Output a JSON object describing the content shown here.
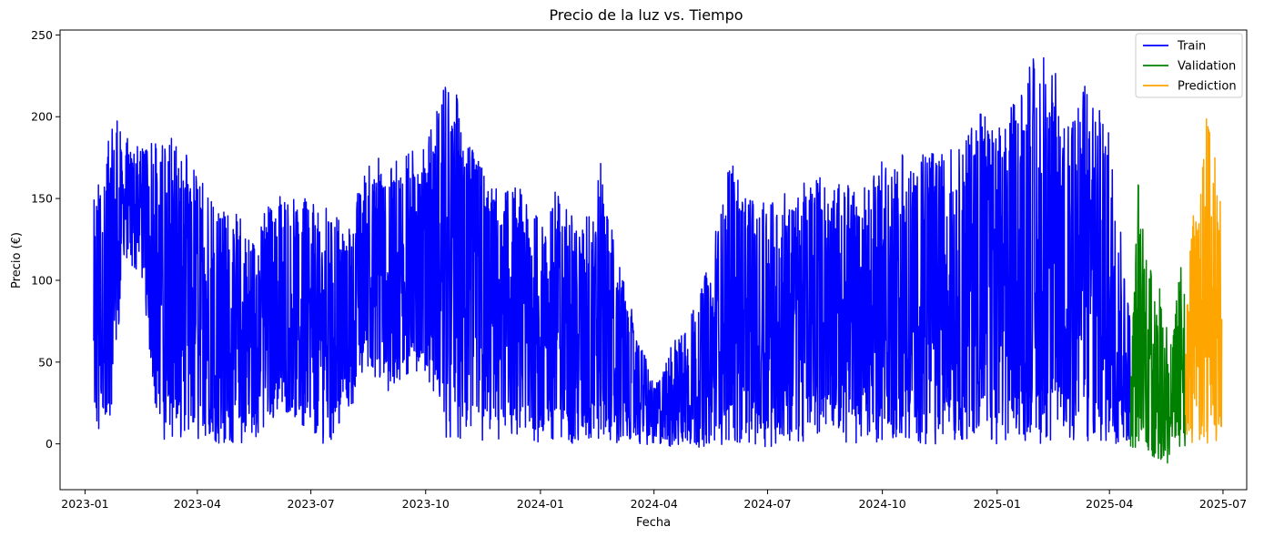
{
  "chart_data": {
    "type": "line",
    "title": "Precio de la luz vs. Tiempo",
    "xlabel": "Fecha",
    "ylabel": "Precio (€)",
    "x_ticks": [
      "2023-01",
      "2023-04",
      "2023-07",
      "2023-10",
      "2024-01",
      "2024-04",
      "2024-07",
      "2024-10",
      "2025-01",
      "2025-04",
      "2025-07"
    ],
    "y_ticks": [
      0,
      50,
      100,
      150,
      200,
      250
    ],
    "xlim": [
      "2022-12-12",
      "2025-07-20"
    ],
    "ylim": [
      -28,
      253
    ],
    "grid": false,
    "legend": "top-right",
    "series": [
      {
        "name": "Train",
        "color": "#0000ff",
        "start": "2023-01-08",
        "end": "2025-04-18",
        "envelope": [
          [
            "2023-01-08",
            4,
            171
          ],
          [
            "2023-01-15",
            0,
            155
          ],
          [
            "2023-01-22",
            12,
            220
          ],
          [
            "2023-02-01",
            110,
            187
          ],
          [
            "2023-02-15",
            105,
            187
          ],
          [
            "2023-03-01",
            4,
            185
          ],
          [
            "2023-03-15",
            0,
            188
          ],
          [
            "2023-04-01",
            0,
            165
          ],
          [
            "2023-04-15",
            0,
            147
          ],
          [
            "2023-05-01",
            0,
            145
          ],
          [
            "2023-05-15",
            0,
            128
          ],
          [
            "2023-06-01",
            15,
            152
          ],
          [
            "2023-06-15",
            20,
            150
          ],
          [
            "2023-07-01",
            0,
            152
          ],
          [
            "2023-07-15",
            0,
            143
          ],
          [
            "2023-08-01",
            20,
            133
          ],
          [
            "2023-08-15",
            45,
            180
          ],
          [
            "2023-09-01",
            30,
            172
          ],
          [
            "2023-09-15",
            40,
            178
          ],
          [
            "2023-10-01",
            45,
            185
          ],
          [
            "2023-10-15",
            5,
            220
          ],
          [
            "2023-10-25",
            0,
            215
          ],
          [
            "2023-11-15",
            0,
            170
          ],
          [
            "2023-12-01",
            0,
            155
          ],
          [
            "2023-12-15",
            0,
            157
          ],
          [
            "2024-01-01",
            0,
            135
          ],
          [
            "2024-01-15",
            0,
            160
          ],
          [
            "2024-02-01",
            0,
            130
          ],
          [
            "2024-02-20",
            0,
            181
          ],
          [
            "2024-03-01",
            0,
            120
          ],
          [
            "2024-03-15",
            0,
            80
          ],
          [
            "2024-04-01",
            -1,
            35
          ],
          [
            "2024-04-15",
            -2,
            60
          ],
          [
            "2024-05-01",
            -2,
            80
          ],
          [
            "2024-05-15",
            -2,
            110
          ],
          [
            "2024-06-01",
            -2,
            175
          ],
          [
            "2024-06-15",
            -2,
            150
          ],
          [
            "2024-07-01",
            -2,
            150
          ],
          [
            "2024-07-15",
            0,
            155
          ],
          [
            "2024-08-01",
            0,
            160
          ],
          [
            "2024-08-15",
            10,
            165
          ],
          [
            "2024-09-01",
            0,
            162
          ],
          [
            "2024-09-15",
            0,
            155
          ],
          [
            "2024-10-01",
            0,
            175
          ],
          [
            "2024-10-15",
            0,
            177
          ],
          [
            "2024-11-01",
            0,
            180
          ],
          [
            "2024-11-15",
            0,
            178
          ],
          [
            "2024-12-01",
            0,
            183
          ],
          [
            "2024-12-15",
            0,
            205
          ],
          [
            "2025-01-01",
            0,
            198
          ],
          [
            "2025-01-15",
            0,
            210
          ],
          [
            "2025-02-01",
            0,
            240
          ],
          [
            "2025-02-15",
            0,
            232
          ],
          [
            "2025-03-01",
            0,
            195
          ],
          [
            "2025-03-15",
            0,
            225
          ],
          [
            "2025-04-01",
            -2,
            195
          ],
          [
            "2025-04-18",
            -2,
            80
          ]
        ]
      },
      {
        "name": "Validation",
        "color": "#008000",
        "start": "2025-04-18",
        "end": "2025-06-01",
        "envelope": [
          [
            "2025-04-18",
            -3,
            40
          ],
          [
            "2025-04-24",
            -5,
            160
          ],
          [
            "2025-05-01",
            -8,
            110
          ],
          [
            "2025-05-10",
            -12,
            100
          ],
          [
            "2025-05-20",
            -14,
            60
          ],
          [
            "2025-06-01",
            -5,
            135
          ]
        ]
      },
      {
        "name": "Prediction",
        "color": "#ffa500",
        "start": "2025-06-01",
        "end": "2025-06-30",
        "envelope": [
          [
            "2025-06-01",
            -5,
            60
          ],
          [
            "2025-06-05",
            0,
            140
          ],
          [
            "2025-06-12",
            0,
            140
          ],
          [
            "2025-06-17",
            0,
            210
          ],
          [
            "2025-06-22",
            0,
            200
          ],
          [
            "2025-06-27",
            0,
            160
          ],
          [
            "2025-06-30",
            0,
            175
          ]
        ]
      }
    ]
  }
}
